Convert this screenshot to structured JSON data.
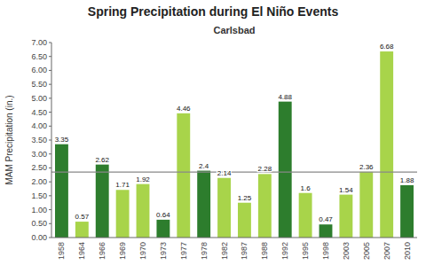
{
  "chart_data": {
    "type": "bar",
    "title": "Spring Precipitation during El Niño Events",
    "subtitle": "Carlsbad",
    "y_label": "MAM Precipitation (in.)",
    "categories": [
      "1958",
      "1964",
      "1966",
      "1969",
      "1970",
      "1973",
      "1977",
      "1978",
      "1982",
      "1987",
      "1988",
      "1992",
      "1995",
      "1998",
      "2003",
      "2005",
      "2007",
      "2010"
    ],
    "values": [
      3.35,
      0.57,
      2.62,
      1.71,
      1.92,
      0.64,
      4.46,
      2.4,
      2.14,
      1.25,
      2.28,
      4.88,
      1.6,
      0.47,
      1.54,
      2.36,
      6.68,
      1.88
    ],
    "colors": [
      "#2D7D2D",
      "#A8D44A",
      "#2D7D2D",
      "#A8D44A",
      "#A8D44A",
      "#2D7D2D",
      "#A8D44A",
      "#2D7D2D",
      "#A8D44A",
      "#A8D44A",
      "#A8D44A",
      "#2D7D2D",
      "#A8D44A",
      "#2D7D2D",
      "#A8D44A",
      "#A8D44A",
      "#A8D44A",
      "#2D7D2D"
    ],
    "ylim": [
      0.0,
      7.0
    ],
    "yticks": [
      {
        "value": 0.0,
        "label": "0.00"
      },
      {
        "value": 0.5,
        "label": "0.50"
      },
      {
        "value": 1.0,
        "label": "1.00"
      },
      {
        "value": 1.5,
        "label": "1.50"
      },
      {
        "value": 2.0,
        "label": "2.00"
      },
      {
        "value": 2.5,
        "label": "2.50"
      },
      {
        "value": 3.0,
        "label": "3.00"
      },
      {
        "value": 3.5,
        "label": "3.50"
      },
      {
        "value": 4.0,
        "label": "4.00"
      },
      {
        "value": 4.5,
        "label": "4.50"
      },
      {
        "value": 5.0,
        "label": "5.00"
      },
      {
        "value": 5.5,
        "label": "5.50"
      },
      {
        "value": 6.0,
        "label": "6.00"
      },
      {
        "value": 6.5,
        "label": "6.50"
      },
      {
        "value": 7.0,
        "label": "7.00"
      }
    ],
    "reference_line": 2.35,
    "data_labels": true,
    "grid": false
  }
}
